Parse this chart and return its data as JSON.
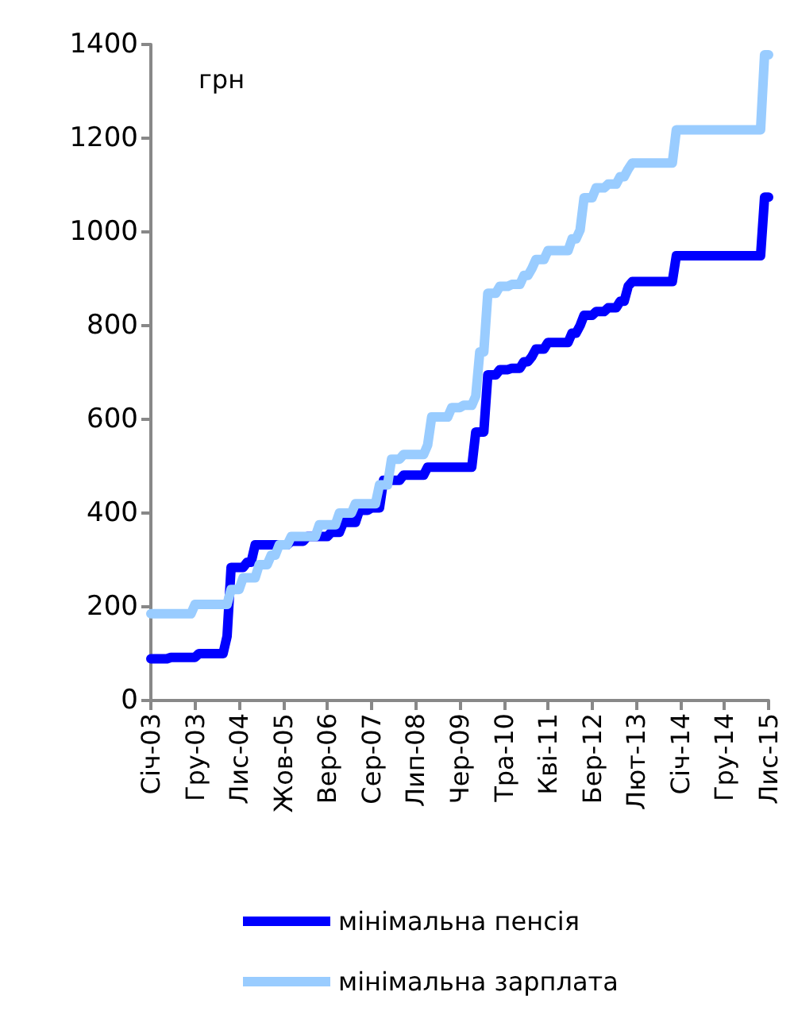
{
  "chart_data": {
    "type": "line",
    "ylabel": "грн",
    "categories": [
      "Січ-03",
      null,
      null,
      null,
      null,
      null,
      null,
      null,
      null,
      null,
      null,
      "Гру-03",
      null,
      null,
      null,
      null,
      null,
      null,
      null,
      null,
      null,
      null,
      "Лис-04",
      null,
      null,
      null,
      null,
      null,
      null,
      null,
      null,
      null,
      null,
      "Жов-05",
      null,
      null,
      null,
      null,
      null,
      null,
      null,
      null,
      null,
      null,
      "Вер-06",
      null,
      null,
      null,
      null,
      null,
      null,
      null,
      null,
      null,
      null,
      "Сер-07",
      null,
      null,
      null,
      null,
      null,
      null,
      null,
      null,
      null,
      null,
      "Лип-08",
      null,
      null,
      null,
      null,
      null,
      null,
      null,
      null,
      null,
      null,
      "Чер-09",
      null,
      null,
      null,
      null,
      null,
      null,
      null,
      null,
      null,
      null,
      "Тра-10",
      null,
      null,
      null,
      null,
      null,
      null,
      null,
      null,
      null,
      null,
      "Кві-11",
      null,
      null,
      null,
      null,
      null,
      null,
      null,
      null,
      null,
      null,
      "Бер-12",
      null,
      null,
      null,
      null,
      null,
      null,
      null,
      null,
      null,
      null,
      "Лют-13",
      null,
      null,
      null,
      null,
      null,
      null,
      null,
      null,
      null,
      null,
      "Січ-14",
      null,
      null,
      null,
      null,
      null,
      null,
      null,
      null,
      null,
      null,
      "Гру-14",
      null,
      null,
      null,
      null,
      null,
      null,
      null,
      null,
      null,
      null,
      "Лис-15"
    ],
    "series": [
      {
        "name": "мінімальна пенсія",
        "color": "#0000ff",
        "values": [
          89,
          89,
          89,
          89,
          89,
          92,
          92,
          92,
          92,
          92,
          92,
          92,
          100,
          100,
          100,
          100,
          100,
          100,
          100,
          137,
          284,
          284,
          284,
          284,
          295,
          295,
          332,
          332,
          332,
          332,
          332,
          332,
          332,
          332,
          332,
          340,
          340,
          340,
          340,
          350,
          350,
          350,
          350,
          350,
          350,
          359,
          359,
          359,
          380,
          380,
          380,
          380,
          406,
          406,
          406,
          411,
          411,
          411,
          470,
          470,
          470,
          470,
          470,
          481,
          481,
          481,
          481,
          481,
          481,
          498,
          498,
          498,
          498,
          498,
          498,
          498,
          498,
          498,
          498,
          498,
          498,
          573,
          573,
          573,
          695,
          695,
          695,
          706,
          706,
          706,
          709,
          709,
          709,
          723,
          723,
          734,
          750,
          750,
          750,
          764,
          764,
          764,
          764,
          764,
          764,
          784,
          784,
          800,
          822,
          822,
          822,
          830,
          830,
          830,
          838,
          838,
          838,
          852,
          852,
          884,
          894,
          894,
          894,
          894,
          894,
          894,
          894,
          894,
          894,
          894,
          894,
          949,
          949,
          949,
          949,
          949,
          949,
          949,
          949,
          949,
          949,
          949,
          949,
          949,
          949,
          949,
          949,
          949,
          949,
          949,
          949,
          949,
          949,
          1074,
          1074
        ]
      },
      {
        "name": "мінімальна зарплата",
        "color": "#99ccff",
        "values": [
          185,
          185,
          185,
          185,
          185,
          185,
          185,
          185,
          185,
          185,
          185,
          205,
          205,
          205,
          205,
          205,
          205,
          205,
          205,
          205,
          237,
          237,
          237,
          262,
          262,
          262,
          262,
          290,
          290,
          290,
          310,
          310,
          332,
          332,
          332,
          350,
          350,
          350,
          350,
          350,
          350,
          350,
          375,
          375,
          375,
          375,
          375,
          400,
          400,
          400,
          400,
          420,
          420,
          420,
          420,
          420,
          420,
          460,
          460,
          460,
          515,
          515,
          515,
          525,
          525,
          525,
          525,
          525,
          525,
          545,
          605,
          605,
          605,
          605,
          605,
          625,
          625,
          625,
          630,
          630,
          630,
          650,
          744,
          744,
          869,
          869,
          869,
          884,
          884,
          884,
          888,
          888,
          888,
          907,
          907,
          922,
          941,
          941,
          941,
          960,
          960,
          960,
          960,
          960,
          960,
          985,
          985,
          1004,
          1073,
          1073,
          1073,
          1094,
          1094,
          1094,
          1102,
          1102,
          1102,
          1118,
          1118,
          1134,
          1147,
          1147,
          1147,
          1147,
          1147,
          1147,
          1147,
          1147,
          1147,
          1147,
          1147,
          1218,
          1218,
          1218,
          1218,
          1218,
          1218,
          1218,
          1218,
          1218,
          1218,
          1218,
          1218,
          1218,
          1218,
          1218,
          1218,
          1218,
          1218,
          1218,
          1218,
          1218,
          1218,
          1378,
          1378
        ]
      }
    ],
    "ylim": [
      0,
      1400
    ],
    "yticks": [
      0,
      200,
      400,
      600,
      800,
      1000,
      1200,
      1400
    ],
    "legend": "bottom",
    "marker": "none",
    "line_style": "solid",
    "grid": false
  }
}
